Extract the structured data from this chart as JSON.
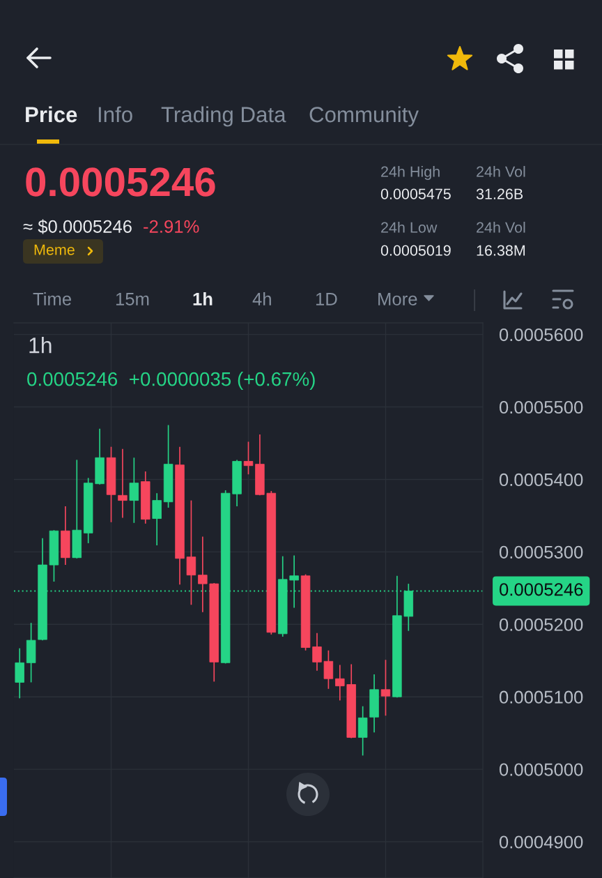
{
  "chart_data": {
    "type": "candlestick",
    "title": "1h",
    "subtitle": "0.0005246  +0.0000035 (+0.67%)",
    "annotations": [
      "Price",
      "Info",
      "Trading Data",
      "Community",
      "0.0005246",
      "≈ $0.0005246",
      "-2.91%",
      "Meme",
      "24h High",
      "0.0005475",
      "24h Vol",
      "31.26B",
      "24h Low",
      "0.0005019",
      "24h Vol",
      "16.38M",
      "Time",
      "15m",
      "1h",
      "4h",
      "1D",
      "More"
    ],
    "categories": [
      null,
      null,
      null,
      null,
      null,
      null,
      null,
      null,
      null,
      null,
      null,
      null,
      null,
      null,
      null,
      null,
      null,
      null,
      null,
      null,
      null,
      null,
      null,
      null,
      null,
      null,
      null,
      null,
      null,
      null,
      null,
      null,
      null,
      null,
      null,
      null,
      null,
      null,
      null,
      null,
      null
    ],
    "ohlc": [
      [
        0.000512,
        0.0005167,
        0.0005098,
        0.0005147
      ],
      [
        0.0005147,
        0.0005202,
        0.000512,
        0.0005178
      ],
      [
        0.0005179,
        0.0005319,
        0.0005178,
        0.0005282
      ],
      [
        0.0005282,
        0.000533,
        0.0005259,
        0.0005329
      ],
      [
        0.0005329,
        0.0005363,
        0.0005282,
        0.0005292
      ],
      [
        0.0005292,
        0.0005427,
        0.0005291,
        0.000533
      ],
      [
        0.0005326,
        0.0005402,
        0.0005312,
        0.0005395
      ],
      [
        0.0005394,
        0.000547,
        0.0005393,
        0.000543
      ],
      [
        0.000543,
        0.0005445,
        0.0005341,
        0.0005379
      ],
      [
        0.0005378,
        0.0005442,
        0.0005347,
        0.0005371
      ],
      [
        0.0005371,
        0.000543,
        0.000534,
        0.0005395
      ],
      [
        0.0005397,
        0.0005411,
        0.0005339,
        0.0005345
      ],
      [
        0.0005346,
        0.0005381,
        0.0005309,
        0.0005371
      ],
      [
        0.0005369,
        0.0005475,
        0.0005361,
        0.0005421
      ],
      [
        0.000542,
        0.0005445,
        0.0005255,
        0.0005291
      ],
      [
        0.0005293,
        0.0005371,
        0.0005227,
        0.0005268
      ],
      [
        0.0005268,
        0.0005321,
        0.0005217,
        0.0005256
      ],
      [
        0.0005256,
        0.0005257,
        0.0005121,
        0.0005148
      ],
      [
        0.0005147,
        0.0005385,
        0.0005146,
        0.0005381
      ],
      [
        0.000538,
        0.0005427,
        0.0005363,
        0.0005425
      ],
      [
        0.0005425,
        0.0005452,
        0.0005407,
        0.0005419
      ],
      [
        0.0005421,
        0.0005462,
        0.0005378,
        0.0005379
      ],
      [
        0.0005381,
        0.0005384,
        0.0005186,
        0.0005189
      ],
      [
        0.0005187,
        0.0005294,
        0.0005183,
        0.0005262
      ],
      [
        0.0005261,
        0.0005295,
        0.0005223,
        0.0005267
      ],
      [
        0.0005267,
        0.0005269,
        0.0005164,
        0.0005168
      ],
      [
        0.0005169,
        0.0005188,
        0.0005136,
        0.0005148
      ],
      [
        0.0005149,
        0.0005164,
        0.0005111,
        0.0005125
      ],
      [
        0.0005125,
        0.0005144,
        0.0005095,
        0.0005115
      ],
      [
        0.0005117,
        0.0005145,
        0.0005043,
        0.0005044
      ],
      [
        0.0005044,
        0.0005087,
        0.0005019,
        0.0005071
      ],
      [
        0.0005072,
        0.0005131,
        0.0005051,
        0.000511
      ],
      [
        0.000511,
        0.0005151,
        0.0005074,
        0.0005101
      ],
      [
        0.00051,
        0.0005267,
        0.0005099,
        0.0005212
      ],
      [
        0.0005211,
        0.0005256,
        0.0005191,
        0.0005246
      ],
      null,
      null,
      null,
      null,
      null,
      null
    ],
    "colors": [
      "#25d486",
      "#25d486",
      "#25d486",
      "#25d486",
      "#f6465d",
      "#25d486",
      "#25d486",
      "#25d486",
      "#f6465d",
      "#f6465d",
      "#25d486",
      "#f6465d",
      "#25d486",
      "#25d486",
      "#f6465d",
      "#f6465d",
      "#f6465d",
      "#f6465d",
      "#25d486",
      "#25d486",
      "#f6465d",
      "#f6465d",
      "#f6465d",
      "#25d486",
      "#25d486",
      "#f6465d",
      "#f6465d",
      "#f6465d",
      "#f6465d",
      "#f6465d",
      "#25d486",
      "#25d486",
      "#f6465d",
      "#25d486",
      "#25d486",
      null,
      null,
      null,
      null,
      null,
      null
    ],
    "ylim": [
      0.000485,
      0.0005616
    ],
    "yticks": [
      {
        "value": 0.00049,
        "label": "0.0004900"
      },
      {
        "value": 0.0005,
        "label": "0.0005000"
      },
      {
        "value": 0.00051,
        "label": "0.0005100"
      },
      {
        "value": 0.00052,
        "label": "0.0005200"
      },
      {
        "value": 0.00053,
        "label": "0.0005300"
      },
      {
        "value": 0.00054,
        "label": "0.0005400"
      },
      {
        "value": 0.00055,
        "label": "0.0005500"
      },
      {
        "value": 0.00056,
        "label": "0.0005600"
      }
    ],
    "grid": true,
    "tick_labels": "y",
    "ref_lines": [
      {
        "axis": "y",
        "value": 0.0005246,
        "label": "0.0005246",
        "color": "#25d486",
        "line_style": "dotted"
      }
    ]
  }
}
